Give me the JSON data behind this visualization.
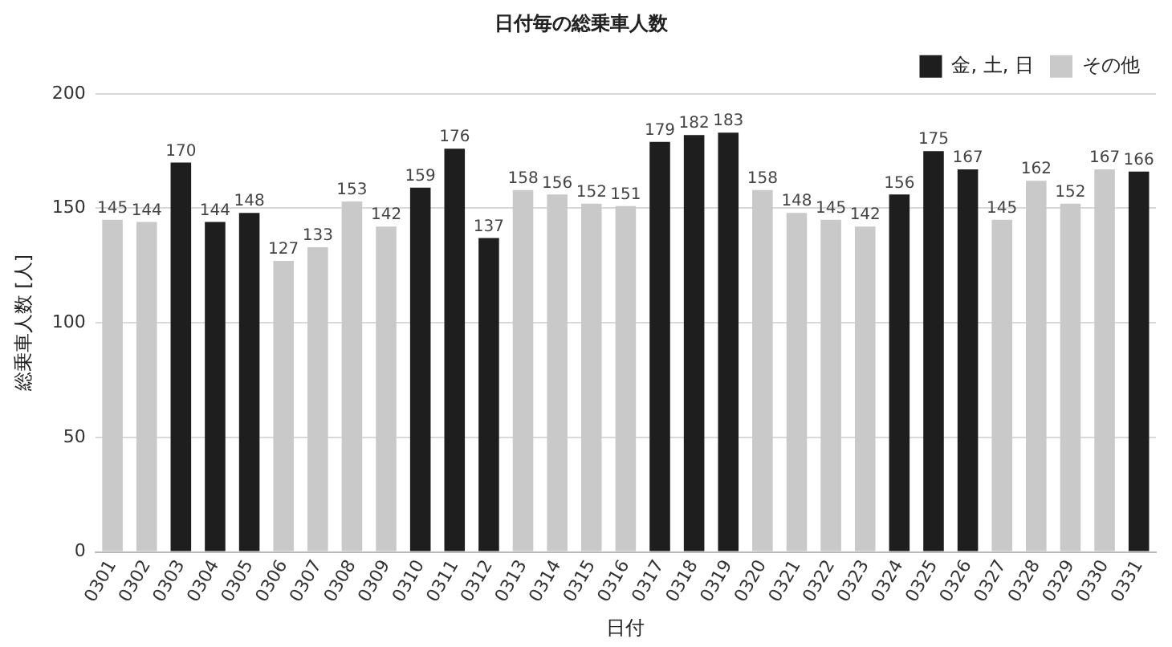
{
  "chart_data": {
    "type": "bar",
    "title": "日付毎の総乗車人数",
    "xlabel": "日付",
    "ylabel": "総乗車人数 [人]",
    "categories": [
      "0301",
      "0302",
      "0303",
      "0304",
      "0305",
      "0306",
      "0307",
      "0308",
      "0309",
      "0310",
      "0311",
      "0312",
      "0313",
      "0314",
      "0315",
      "0316",
      "0317",
      "0318",
      "0319",
      "0320",
      "0321",
      "0322",
      "0323",
      "0324",
      "0325",
      "0326",
      "0327",
      "0328",
      "0329",
      "0330",
      "0331"
    ],
    "series": [
      {
        "name": "金, 土, 日",
        "color": "#1e1e1e",
        "values": [
          null,
          null,
          170,
          144,
          148,
          null,
          null,
          null,
          null,
          159,
          176,
          137,
          null,
          null,
          null,
          null,
          179,
          182,
          183,
          null,
          null,
          null,
          null,
          156,
          175,
          167,
          null,
          null,
          null,
          null,
          166
        ]
      },
      {
        "name": "その他",
        "color": "#c9c9c9",
        "values": [
          145,
          144,
          null,
          null,
          null,
          127,
          133,
          153,
          142,
          null,
          null,
          null,
          158,
          156,
          152,
          151,
          null,
          null,
          null,
          158,
          148,
          145,
          142,
          null,
          null,
          null,
          145,
          162,
          152,
          167,
          null
        ]
      }
    ],
    "ylim": [
      0,
      200
    ],
    "yticks": [
      0,
      50,
      100,
      150,
      200
    ],
    "grid": "y",
    "legend": "top right",
    "data_labels": true
  }
}
